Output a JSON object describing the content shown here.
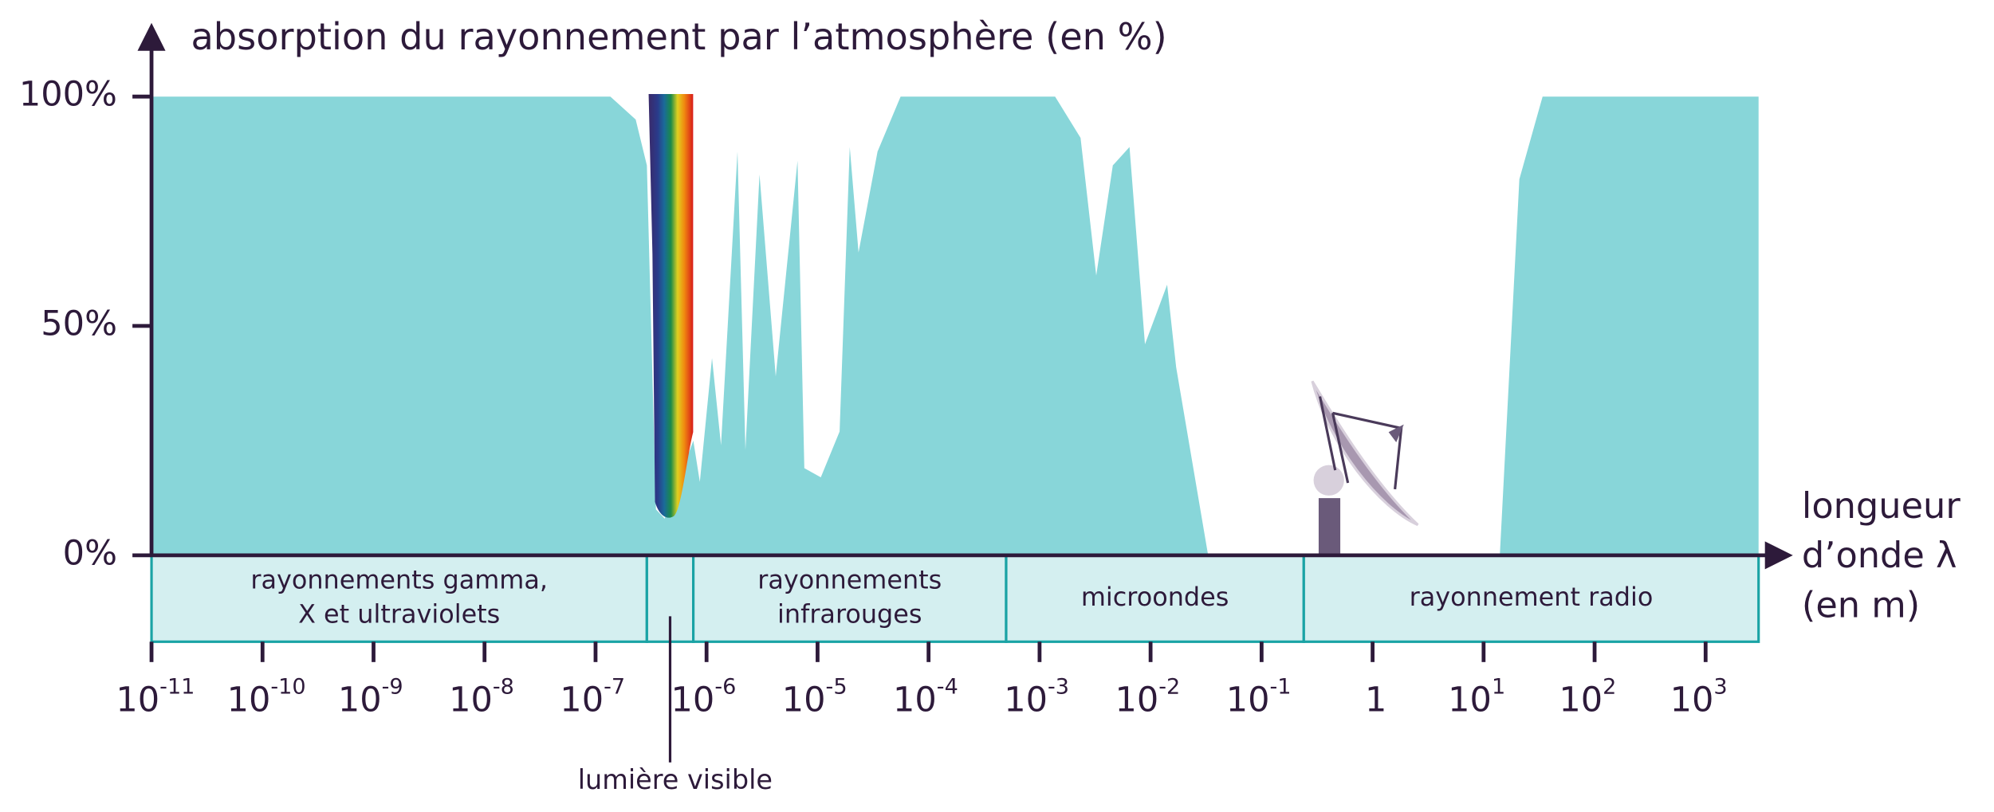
{
  "chart_data": {
    "type": "area",
    "title": "absorption du rayonnement par l’atmosphère (en %)",
    "x_label": [
      "longueur",
      "d’onde λ",
      "(en m)"
    ],
    "x": [
      1e-11,
      1.36e-07,
      2.3e-07,
      2.9e-07,
      3.5e-07,
      4.2e-07,
      7.6e-07,
      8.7e-07,
      1.12e-06,
      1.35e-06,
      1.9e-06,
      2.24e-06,
      3e-06,
      4.2e-06,
      6.6e-06,
      7.6e-06,
      1.07e-05,
      1.58e-05,
      1.95e-05,
      2.34e-05,
      3.47e-05,
      5.6e-05,
      0.00138,
      0.00234,
      0.00324,
      0.00457,
      0.00646,
      0.0089,
      0.0141,
      0.017,
      0.033,
      14,
      21,
      34,
      3000
    ],
    "values": [
      100,
      100,
      95,
      85,
      10,
      8,
      25,
      16,
      43,
      24,
      88,
      23,
      83,
      39,
      86,
      19,
      17,
      27,
      89,
      66,
      88,
      100,
      100,
      91,
      61,
      85,
      89,
      46,
      59,
      41,
      0,
      0,
      82,
      100,
      100
    ],
    "color": "#88d6d9",
    "xlim": [
      1e-11,
      3000
    ],
    "ylim": [
      0,
      100
    ],
    "log_x": true,
    "yticks": [
      {
        "value": 0,
        "label": "0%"
      },
      {
        "value": 50,
        "label": "50%"
      },
      {
        "value": 100,
        "label": "100%"
      }
    ],
    "xticks": [
      {
        "value": 1e-11,
        "label": "10",
        "exponent": "-11"
      },
      {
        "value": 1e-10,
        "label": "10",
        "exponent": "-10"
      },
      {
        "value": 1e-09,
        "label": "10",
        "exponent": "-9"
      },
      {
        "value": 1e-08,
        "label": "10",
        "exponent": "-8"
      },
      {
        "value": 1e-07,
        "label": "10",
        "exponent": "-7"
      },
      {
        "value": 1e-06,
        "label": "10",
        "exponent": "-6"
      },
      {
        "value": 1e-05,
        "label": "10",
        "exponent": "-5"
      },
      {
        "value": 0.0001,
        "label": "10",
        "exponent": "-4"
      },
      {
        "value": 0.001,
        "label": "10",
        "exponent": "-3"
      },
      {
        "value": 0.01,
        "label": "10",
        "exponent": "-2"
      },
      {
        "value": 0.1,
        "label": "10",
        "exponent": "-1"
      },
      1,
      {
        "value": 10,
        "label": "10",
        "exponent": "1"
      },
      {
        "value": 100,
        "label": "10",
        "exponent": "2"
      },
      {
        "value": 1000,
        "label": "10",
        "exponent": "3"
      }
    ],
    "bands": [
      {
        "label": [
          "rayonnements gamma,",
          "X et ultraviolets"
        ],
        "from": 1e-11,
        "to": 2.9e-07
      },
      {
        "label": null,
        "from": 2.9e-07,
        "to": 7.6e-07
      },
      {
        "label": [
          "rayonnements",
          "infrarouges"
        ],
        "from": 7.6e-07,
        "to": 0.0005
      },
      {
        "label": [
          "microondes"
        ],
        "from": 0.0005,
        "to": 0.24
      },
      {
        "label": [
          "rayonnement radio"
        ],
        "from": 0.24,
        "to": 3000
      }
    ],
    "annotation": "lumière visible",
    "band_fill": "#d4eff0",
    "band_stroke": "#1aa3a5"
  }
}
